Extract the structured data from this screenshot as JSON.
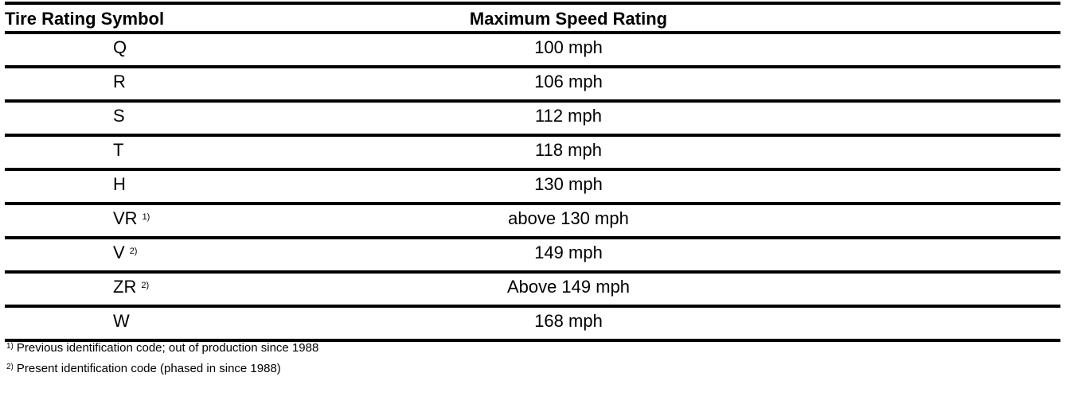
{
  "table": {
    "headers": {
      "symbol": "Tire Rating Symbol",
      "speed": "Maximum Speed Rating"
    },
    "rows": [
      {
        "symbol": "Q",
        "note": "",
        "speed": "100 mph"
      },
      {
        "symbol": "R",
        "note": "",
        "speed": "106 mph"
      },
      {
        "symbol": "S",
        "note": "",
        "speed": "112 mph"
      },
      {
        "symbol": "T",
        "note": "",
        "speed": "118 mph"
      },
      {
        "symbol": "H",
        "note": "",
        "speed": "130 mph"
      },
      {
        "symbol": "VR",
        "note": "1)",
        "speed": "above 130 mph"
      },
      {
        "symbol": "V",
        "note": "2)",
        "speed": "149 mph"
      },
      {
        "symbol": "ZR",
        "note": "2)",
        "speed": "Above 149 mph"
      },
      {
        "symbol": "W",
        "note": "",
        "speed": "168 mph"
      }
    ]
  },
  "footnotes": [
    {
      "mark": "1)",
      "text": "Previous identification code; out of production since 1988"
    },
    {
      "mark": "2)",
      "text": "Present identification code (phased in since 1988)"
    }
  ]
}
